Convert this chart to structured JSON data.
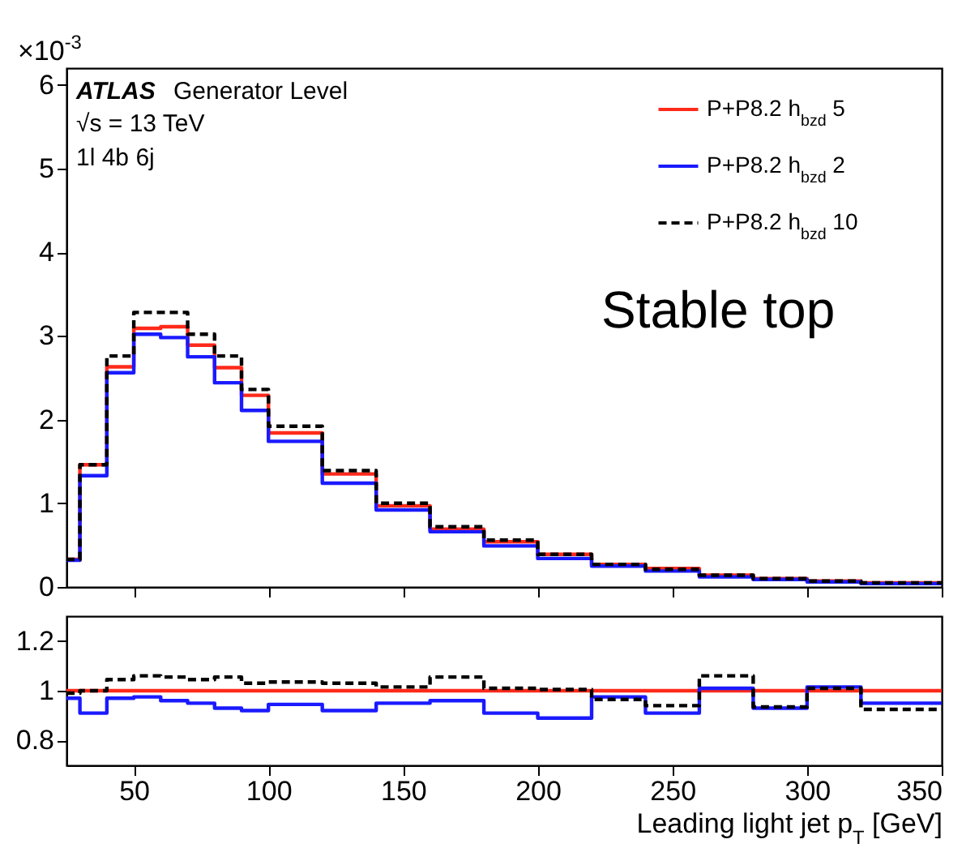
{
  "chart_data": [
    {
      "type": "histogram",
      "annotations": [
        "×10$^{-3}$",
        "ATLAS",
        "Generator Level",
        "√s = 13 TeV",
        "1l 4b 6j",
        "Stable top"
      ],
      "bins": [
        25,
        30,
        40,
        50,
        60,
        70,
        80,
        90,
        100,
        120,
        140,
        160,
        180,
        200,
        220,
        240,
        260,
        280,
        300,
        320,
        350
      ],
      "series": [
        {
          "name": "P+P8.2 h$_{bzd}$ 5",
          "color": "#ff2a1a",
          "line_style": "solid",
          "values": [
            0.33,
            1.46,
            2.63,
            3.09,
            3.11,
            2.89,
            2.62,
            2.29,
            1.84,
            1.35,
            0.97,
            0.69,
            0.54,
            0.39,
            0.27,
            0.22,
            0.14,
            0.1,
            0.07,
            0.05
          ]
        },
        {
          "name": "P+P8.2 h$_{bzd}$ 2",
          "color": "#1a1aff",
          "line_style": "solid",
          "values": [
            0.32,
            1.33,
            2.56,
            3.02,
            2.98,
            2.75,
            2.44,
            2.11,
            1.74,
            1.24,
            0.92,
            0.66,
            0.49,
            0.34,
            0.25,
            0.19,
            0.12,
            0.09,
            0.06,
            0.04
          ]
        },
        {
          "name": "P+P8.2 h$_{bzd}$ 10",
          "color": "#000000",
          "line_style": "dashed",
          "values": [
            0.33,
            1.46,
            2.76,
            3.28,
            3.28,
            3.02,
            2.76,
            2.36,
            1.92,
            1.39,
            1.0,
            0.72,
            0.56,
            0.39,
            0.27,
            0.21,
            0.14,
            0.1,
            0.07,
            0.05
          ]
        }
      ],
      "xlim": [
        25,
        350
      ],
      "xticks": [
        50,
        100,
        150,
        200,
        250,
        300,
        350
      ],
      "ylim": [
        0,
        6.2
      ],
      "yticks": [
        0,
        1,
        2,
        3,
        4,
        5,
        6
      ],
      "tick_labels": "y",
      "legend": "top right",
      "grid": false
    },
    {
      "type": "histogram",
      "xlabel": "Leading light jet p$_{T}$ [GeV]",
      "bins": [
        25,
        30,
        40,
        50,
        60,
        70,
        80,
        90,
        100,
        120,
        140,
        160,
        180,
        200,
        220,
        240,
        260,
        280,
        300,
        320,
        350
      ],
      "series": [
        {
          "color": "#ff2a1a",
          "line_style": "solid",
          "values": [
            1,
            1,
            1,
            1,
            1,
            1,
            1,
            1,
            1,
            1,
            1,
            1,
            1,
            1,
            1,
            1,
            1,
            1,
            1,
            1
          ]
        },
        {
          "color": "#1a1aff",
          "line_style": "solid",
          "values": [
            0.97,
            0.91,
            0.97,
            0.975,
            0.96,
            0.95,
            0.93,
            0.92,
            0.945,
            0.92,
            0.95,
            0.96,
            0.91,
            0.89,
            0.975,
            0.91,
            1.01,
            0.93,
            1.015,
            0.95
          ]
        },
        {
          "color": "#000000",
          "line_style": "dashed",
          "values": [
            0.99,
            1.0,
            1.045,
            1.06,
            1.055,
            1.045,
            1.055,
            1.03,
            1.035,
            1.03,
            1.015,
            1.055,
            1.01,
            1.005,
            0.965,
            0.94,
            1.06,
            0.935,
            1.01,
            0.925
          ]
        }
      ],
      "xlim": [
        25,
        350
      ],
      "xticks": [
        50,
        100,
        150,
        200,
        250,
        300,
        350
      ],
      "ylim": [
        0.7,
        1.3
      ],
      "yticks": [
        {
          "value": 0.8,
          "label": "0.8"
        },
        1,
        1.2
      ],
      "grid": false
    }
  ]
}
